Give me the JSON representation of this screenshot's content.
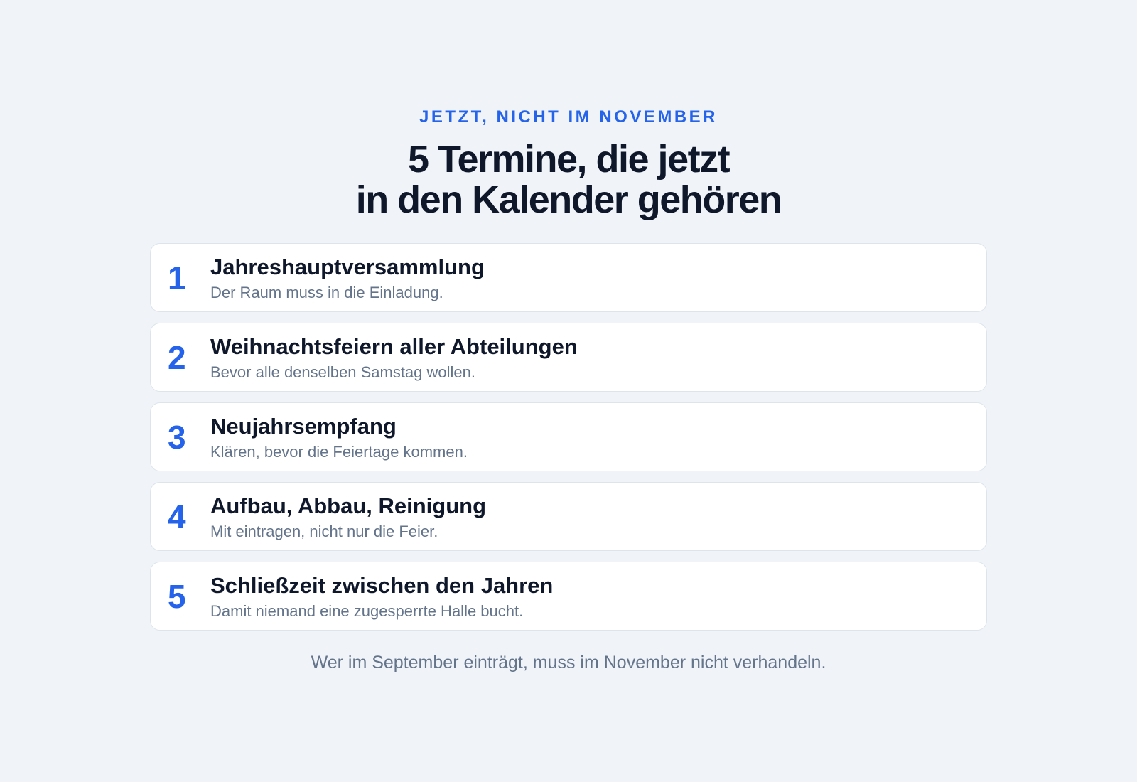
{
  "eyebrow": "JETZT, NICHT IM NOVEMBER",
  "headline": {
    "line1": "5 Termine, die jetzt",
    "line2": "in den Kalender gehören"
  },
  "items": [
    {
      "number": "1",
      "title": "Jahreshauptversammlung",
      "description": "Der Raum muss in die Einladung."
    },
    {
      "number": "2",
      "title": "Weihnachtsfeiern aller Abteilungen",
      "description": "Bevor alle denselben Samstag wollen."
    },
    {
      "number": "3",
      "title": "Neujahrsempfang",
      "description": "Klären, bevor die Feiertage kommen."
    },
    {
      "number": "4",
      "title": "Aufbau, Abbau, Reinigung",
      "description": "Mit eintragen, nicht nur die Feier."
    },
    {
      "number": "5",
      "title": "Schließzeit zwischen den Jahren",
      "description": "Damit niemand eine zugesperrte Halle bucht."
    }
  ],
  "footer": "Wer im September einträgt, muss im November nicht verhandeln.",
  "colors": {
    "background": "#f0f4f8",
    "accent": "#2563eb",
    "heading": "#0f172a",
    "muted": "#64748b",
    "card": "#ffffff"
  }
}
